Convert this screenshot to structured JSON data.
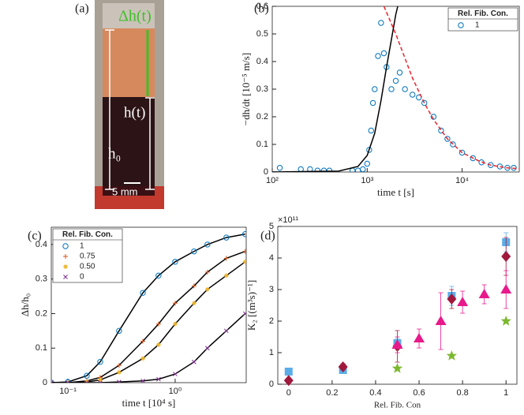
{
  "panel_a": {
    "label": "(a)",
    "delta_h": "Δh(t)",
    "h": "h(t)",
    "h0": "h₀",
    "scale": "5 mm"
  },
  "chart_data": [
    {
      "type": "scatter",
      "label": "(b)",
      "xlabel": "time t [s]",
      "ylabel": "−dh/dt [10⁻⁵ m/s]",
      "xscale": "log",
      "xlim": [
        100,
        40000
      ],
      "xticks": [
        {
          "value": 100,
          "label": "10²"
        },
        {
          "value": 1000,
          "label": "10³"
        },
        {
          "value": 10000,
          "label": "10⁴"
        }
      ],
      "ylim": [
        0,
        0.6
      ],
      "yticks": [
        0,
        0.1,
        0.2,
        0.3,
        0.4,
        0.5,
        0.6
      ],
      "legend": "upper right",
      "legend_title": "Rel. Fib. Con.",
      "series": [
        {
          "name": "1",
          "color": "#0072bd",
          "marker": "o",
          "x": [
            120,
            200,
            250,
            300,
            350,
            400,
            700,
            800,
            900,
            1000,
            1050,
            1100,
            1150,
            1200,
            1300,
            1400,
            1500,
            1600,
            1800,
            2000,
            2200,
            2500,
            3000,
            3500,
            4000,
            5000,
            6000,
            7000,
            8000,
            10000,
            13000,
            16000,
            20000,
            25000,
            30000,
            35000
          ],
          "values": [
            0.015,
            0.01,
            0.01,
            0.005,
            0.005,
            0.005,
            0.005,
            0.005,
            0.01,
            0.03,
            0.08,
            0.15,
            0.25,
            0.3,
            0.42,
            0.54,
            0.43,
            0.38,
            0.3,
            0.33,
            0.36,
            0.3,
            0.28,
            0.27,
            0.25,
            0.2,
            0.15,
            0.12,
            0.1,
            0.07,
            0.05,
            0.035,
            0.025,
            0.02,
            0.015,
            0.015
          ]
        },
        {
          "color": "#000000",
          "line": "solid",
          "x": [
            100,
            500,
            800,
            1000,
            1200,
            1400,
            1600,
            1800,
            2000,
            2100
          ],
          "values": [
            0,
            0.003,
            0.02,
            0.06,
            0.14,
            0.26,
            0.38,
            0.48,
            0.57,
            0.6
          ]
        },
        {
          "color": "#e8242c",
          "line": "dashed",
          "x": [
            1500,
            2000,
            3000,
            4000,
            5000,
            7000,
            10000,
            15000,
            20000,
            30000,
            40000
          ],
          "values": [
            0.6,
            0.5,
            0.34,
            0.25,
            0.19,
            0.12,
            0.07,
            0.04,
            0.025,
            0.015,
            0.012
          ]
        }
      ]
    },
    {
      "type": "line",
      "label": "(c)",
      "xlabel": "time t [10⁴ s]",
      "ylabel": "Δh/h₀",
      "xscale": "log",
      "xlim": [
        0.07,
        4.6
      ],
      "xticks": [
        {
          "value": 0.1,
          "label": "10⁻¹"
        },
        {
          "value": 1,
          "label": "10⁰"
        }
      ],
      "ylim": [
        0,
        0.45
      ],
      "yticks": [
        0,
        0.1,
        0.2,
        0.3,
        0.4
      ],
      "legend": "upper left",
      "legend_title": "Rel. Fib. Con.",
      "series": [
        {
          "name": "1",
          "color": "#0072bd",
          "marker": "o",
          "line": "solid",
          "x": [
            0.07,
            0.1,
            0.15,
            0.2,
            0.3,
            0.5,
            0.7,
            1,
            1.5,
            2,
            3,
            4.5
          ],
          "values": [
            0,
            0.002,
            0.02,
            0.06,
            0.15,
            0.26,
            0.31,
            0.35,
            0.38,
            0.4,
            0.42,
            0.43
          ]
        },
        {
          "name": "0.75",
          "color": "#d95319",
          "marker": "+",
          "line": "solid",
          "x": [
            0.07,
            0.1,
            0.15,
            0.2,
            0.3,
            0.5,
            0.7,
            1,
            1.5,
            2,
            3,
            4.5
          ],
          "values": [
            0,
            0,
            0.005,
            0.015,
            0.05,
            0.12,
            0.17,
            0.23,
            0.28,
            0.32,
            0.36,
            0.38
          ]
        },
        {
          "name": "0.50",
          "color": "#edb120",
          "marker": "*",
          "line": "solid",
          "x": [
            0.07,
            0.1,
            0.15,
            0.2,
            0.3,
            0.5,
            0.7,
            1,
            1.5,
            2,
            3,
            4.5
          ],
          "values": [
            0,
            0,
            0.002,
            0.008,
            0.03,
            0.07,
            0.11,
            0.17,
            0.23,
            0.27,
            0.31,
            0.35
          ]
        },
        {
          "name": "0",
          "color": "#7e2f8e",
          "marker": "x",
          "line": "solid",
          "x": [
            0.07,
            0.1,
            0.15,
            0.2,
            0.3,
            0.5,
            0.7,
            1,
            1.5,
            2,
            3,
            4.5
          ],
          "values": [
            0,
            0,
            0,
            0,
            0.002,
            0.005,
            0.01,
            0.025,
            0.06,
            0.1,
            0.15,
            0.2
          ]
        }
      ]
    },
    {
      "type": "scatter",
      "label": "(d)",
      "xlabel": "Rel. Fib. Con",
      "ylabel": "K₂ [(m³s)⁻¹]",
      "y_exponent": "×10¹¹",
      "xlim": [
        -0.05,
        1.05
      ],
      "xticks": [
        0,
        0.2,
        0.4,
        0.6,
        0.8,
        1
      ],
      "ylim": [
        0,
        5
      ],
      "yticks": [
        0,
        1,
        2,
        3,
        4,
        5
      ],
      "series": [
        {
          "color": "#5aaee8",
          "marker": "s",
          "x": [
            0,
            0.25,
            0.5,
            0.75,
            1
          ],
          "values": [
            0.4,
            0.45,
            1.3,
            2.8,
            4.5
          ],
          "errors": [
            0.1,
            0.1,
            0.15,
            0.3,
            0.3
          ]
        },
        {
          "color": "#a0183c",
          "marker": "d",
          "x": [
            0,
            0.25,
            0.5,
            0.75,
            1
          ],
          "values": [
            0.12,
            0.55,
            1.2,
            2.7,
            4.05
          ],
          "errors": [
            0.05,
            0.1,
            0.5,
            0.3,
            0.6
          ]
        },
        {
          "color": "#e8198b",
          "marker": "^",
          "x": [
            0.5,
            0.6,
            0.7,
            0.8,
            0.9,
            1
          ],
          "values": [
            1.25,
            1.45,
            2.0,
            2.6,
            2.85,
            3.0
          ],
          "errors": [
            0.25,
            0.3,
            0.9,
            0.35,
            0.3,
            0.6
          ]
        },
        {
          "color": "#7cb82f",
          "marker": "p",
          "x": [
            0.5,
            0.75,
            1
          ],
          "values": [
            0.5,
            0.9,
            2.0
          ]
        }
      ]
    }
  ]
}
